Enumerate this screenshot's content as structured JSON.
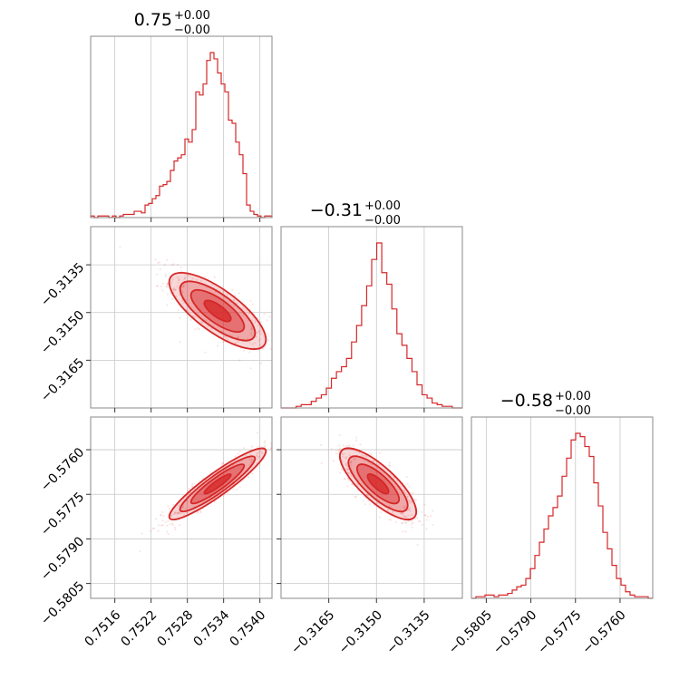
{
  "colors": {
    "accent": "#d62728"
  },
  "chart_data": {
    "type": "corner",
    "params": [
      {
        "title": "0.75",
        "title_sup": "+0.00",
        "title_sub": "−0.00",
        "range": [
          0.7512,
          0.7542
        ],
        "ticks": [
          0.7516,
          0.7522,
          0.7528,
          0.7534,
          0.754
        ],
        "tick_labels": [
          "0.7516",
          "0.7522",
          "0.7528",
          "0.7534",
          "0.7540"
        ],
        "hist": [
          1,
          0,
          1,
          1,
          1,
          0,
          1,
          0,
          1,
          2,
          2,
          2,
          4,
          4,
          3,
          8,
          9,
          12,
          14,
          20,
          21,
          23,
          30,
          36,
          38,
          40,
          50,
          48,
          56,
          80,
          78,
          85,
          100,
          105,
          101,
          92,
          85,
          80,
          62,
          60,
          48,
          40,
          28,
          8,
          4,
          2,
          1,
          0,
          1,
          1
        ]
      },
      {
        "title": "−0.31",
        "title_sup": "+0.00",
        "title_sub": "−0.00",
        "range": [
          -0.318,
          -0.3123
        ],
        "ticks": [
          -0.3165,
          -0.315,
          -0.3135
        ],
        "tick_labels": [
          "−0.3165",
          "−0.3150",
          "−0.3135"
        ],
        "hist": [
          0,
          0,
          0,
          1,
          2,
          2,
          4,
          6,
          8,
          12,
          18,
          22,
          25,
          30,
          40,
          50,
          62,
          74,
          90,
          100,
          82,
          75,
          60,
          45,
          38,
          30,
          22,
          14,
          8,
          6,
          3,
          2,
          1,
          1,
          0,
          0
        ]
      },
      {
        "title": "−0.58",
        "title_sup": "+0.00",
        "title_sub": "−0.00",
        "range": [
          -0.581,
          -0.5749
        ],
        "ticks": [
          -0.5805,
          -0.579,
          -0.5775,
          -0.576
        ],
        "tick_labels": [
          "−0.5805",
          "−0.5790",
          "−0.5775",
          "−0.5760"
        ],
        "hist": [
          0,
          1,
          1,
          2,
          2,
          1,
          2,
          2,
          3,
          5,
          7,
          8,
          12,
          18,
          26,
          34,
          42,
          50,
          55,
          62,
          74,
          85,
          96,
          100,
          98,
          92,
          86,
          70,
          56,
          40,
          30,
          20,
          12,
          8,
          4,
          2,
          1,
          1,
          1,
          0
        ]
      }
    ],
    "pairs": [
      {
        "row": 1,
        "col": 0,
        "mean": [
          0.7533,
          -0.31495
        ],
        "sd": [
          0.0004,
          0.0006
        ],
        "rho": -0.75
      },
      {
        "row": 2,
        "col": 0,
        "mean": [
          0.7533,
          -0.57715
        ],
        "sd": [
          0.0004,
          0.0006
        ],
        "rho": 0.92
      },
      {
        "row": 2,
        "col": 1,
        "mean": [
          -0.31495,
          -0.57715
        ],
        "sd": [
          0.0006,
          0.0006
        ],
        "rho": -0.78
      }
    ],
    "grid": true
  }
}
